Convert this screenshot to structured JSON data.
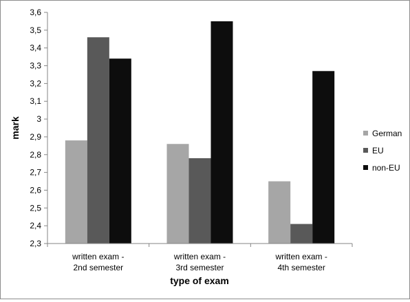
{
  "chart_data": {
    "type": "bar",
    "title": "",
    "xlabel": "type of exam",
    "ylabel": "mark",
    "ylim": [
      2.3,
      3.6
    ],
    "ytick_step": 0.1,
    "decimal_separator": ",",
    "grid": false,
    "legend_position": "right",
    "categories": [
      [
        "written exam -",
        "2nd semester"
      ],
      [
        "written exam -",
        "3rd semester"
      ],
      [
        "written exam -",
        "4th semester"
      ]
    ],
    "series": [
      {
        "name": "German",
        "color": "#a6a6a6",
        "values": [
          2.88,
          2.86,
          2.65
        ]
      },
      {
        "name": "EU",
        "color": "#595959",
        "values": [
          3.46,
          2.78,
          2.41
        ]
      },
      {
        "name": "non-EU",
        "color": "#0d0d0d",
        "values": [
          3.34,
          3.55,
          3.27
        ]
      }
    ]
  }
}
